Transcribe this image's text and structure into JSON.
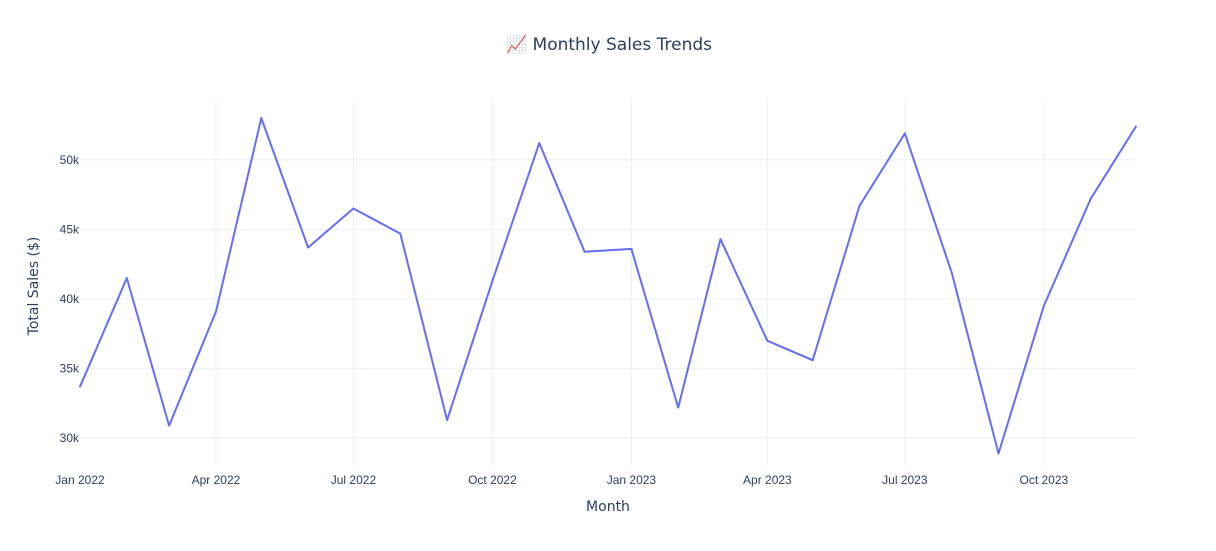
{
  "chart_data": {
    "type": "line",
    "title": "📈 Monthly Sales Trends",
    "xlabel": "Month",
    "ylabel": "Total Sales ($)",
    "grid": true,
    "legend": "none",
    "colors": {
      "series": "#636efa",
      "grid": "#ebf0f8",
      "text": "#2a3f5f"
    },
    "xlim": [
      "2022-01-01",
      "2023-12-01"
    ],
    "ylim": [
      28000,
      54300
    ],
    "x_ticks": [
      {
        "date": "2022-01-01",
        "label": "Jan 2022"
      },
      {
        "date": "2022-04-01",
        "label": "Apr 2022"
      },
      {
        "date": "2022-07-01",
        "label": "Jul 2022"
      },
      {
        "date": "2022-10-01",
        "label": "Oct 2022"
      },
      {
        "date": "2023-01-01",
        "label": "Jan 2023"
      },
      {
        "date": "2023-04-01",
        "label": "Apr 2023"
      },
      {
        "date": "2023-07-01",
        "label": "Jul 2023"
      },
      {
        "date": "2023-10-01",
        "label": "Oct 2023"
      }
    ],
    "y_ticks": [
      {
        "value": 30000,
        "label": "30k"
      },
      {
        "value": 35000,
        "label": "35k"
      },
      {
        "value": 40000,
        "label": "40k"
      },
      {
        "value": 45000,
        "label": "45k"
      },
      {
        "value": 50000,
        "label": "50k"
      }
    ],
    "x": [
      "2022-01-01",
      "2022-02-01",
      "2022-03-01",
      "2022-04-01",
      "2022-05-01",
      "2022-06-01",
      "2022-07-01",
      "2022-08-01",
      "2022-09-01",
      "2022-10-01",
      "2022-11-01",
      "2022-12-01",
      "2023-01-01",
      "2023-02-01",
      "2023-03-01",
      "2023-04-01",
      "2023-05-01",
      "2023-06-01",
      "2023-07-01",
      "2023-08-01",
      "2023-09-01",
      "2023-10-01",
      "2023-11-01",
      "2023-12-01"
    ],
    "series": [
      {
        "values": [
          33700,
          41500,
          30900,
          39100,
          53000,
          43700,
          46500,
          44700,
          31300,
          41300,
          51200,
          43400,
          43600,
          32200,
          44300,
          37000,
          35600,
          46700,
          51900,
          41900,
          28900,
          39500,
          47200,
          52400
        ]
      }
    ]
  }
}
